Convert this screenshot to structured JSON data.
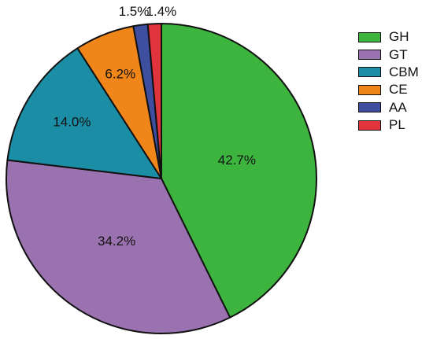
{
  "chart_data": {
    "type": "pie",
    "title": "",
    "categories": [
      "GH",
      "GT",
      "CBM",
      "CE",
      "AA",
      "PL"
    ],
    "values": [
      42.7,
      34.2,
      14.0,
      6.2,
      1.5,
      1.4
    ],
    "labels": [
      "42.7%",
      "34.2%",
      "14.0%",
      "6.2%",
      "1.5%",
      "1.4%"
    ],
    "colors": [
      "#3DB43D",
      "#9B72B0",
      "#1B8EA5",
      "#F0861A",
      "#3E4FA0",
      "#E2343D"
    ],
    "start": "12 o'clock",
    "direction": "clockwise",
    "legend_position": "right"
  }
}
